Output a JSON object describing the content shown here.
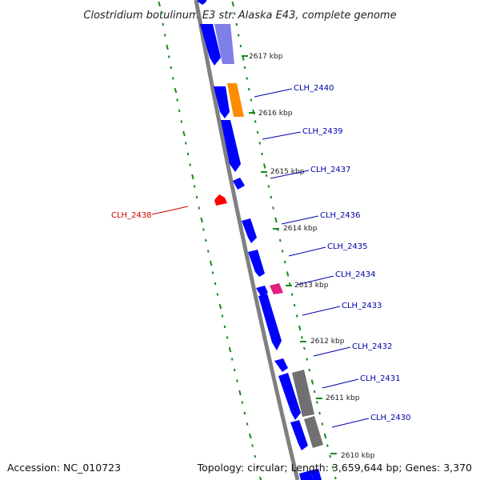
{
  "title": "Clostridium botulinum E3 str. Alaska E43, complete genome",
  "footer": {
    "accession": "Accession: NC_010723",
    "topology": "Topology: circular; Length: 3,659,644 bp; Genes: 3,370"
  },
  "colors": {
    "backbone": "#808080",
    "tick_dash": "#1a8a1a",
    "cds": "#0000ff",
    "cds_light": "#7f7fe8",
    "orange": "#ff8c00",
    "magenta": "#e0207e",
    "gray": "#707070",
    "red": "#ff0000",
    "label_blue": "#0000aa",
    "label_red": "#cc0000"
  },
  "ticks": [
    "2617 kbp",
    "2616 kbp",
    "2615 kbp",
    "2614 kbp",
    "2613 kbp",
    "2612 kbp",
    "2611 kbp",
    "2610 kbp"
  ],
  "gene_labels": [
    "CLH_2440",
    "CLH_2439",
    "CLH_2437",
    "CLH_2436",
    "CLH_2435",
    "CLH_2434",
    "CLH_2433",
    "CLH_2432",
    "CLH_2431",
    "CLH_2430",
    "CLH_2438"
  ]
}
